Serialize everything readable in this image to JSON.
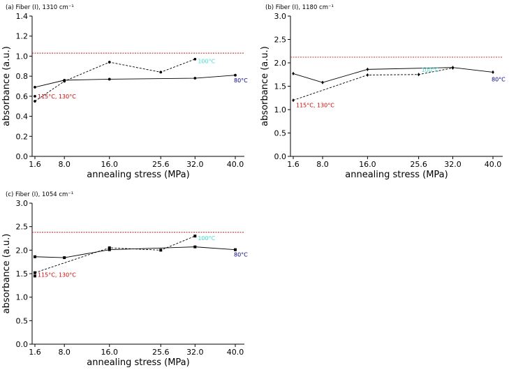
{
  "chart_data": [
    {
      "panel": "a",
      "title": "(a) Fiber (I), 1310 cm⁻¹",
      "type": "line",
      "xlabel": "annealing stress (MPa)",
      "ylabel": "absorbance (a.u.)",
      "categories": [
        "1.6",
        "8.0",
        "16.0",
        "25.6",
        "32.0",
        "40.0"
      ],
      "ylim": [
        0,
        1.4
      ],
      "yticks": [
        0.0,
        0.2,
        0.4,
        0.6,
        0.8,
        1.0,
        1.2,
        1.4
      ],
      "ytick_labels": [
        "0.0",
        "0.2",
        "0.4",
        "0.6",
        "0.8",
        "1.0",
        "1.2",
        "1.4"
      ],
      "reference_line": 1.03,
      "series": [
        {
          "name": "80°C",
          "style": "solid",
          "marker": "circle",
          "points": [
            [
              0,
              0.69
            ],
            [
              1,
              0.76
            ],
            [
              2,
              0.77
            ],
            [
              4,
              0.78
            ],
            [
              5,
              0.81
            ]
          ],
          "label": "80°C",
          "label_color": "#000080",
          "label_at": 5,
          "label_dy": -0.05
        },
        {
          "name": "100°C",
          "style": "dashed",
          "marker": "circle",
          "points": [
            [
              0,
              0.55
            ],
            [
              1,
              0.75
            ],
            [
              2,
              0.94
            ],
            [
              3,
              0.84
            ],
            [
              4,
              0.97
            ]
          ],
          "label": "100°C",
          "label_color": "#40e0d0",
          "label_at": 4,
          "label_dy": -0.02
        },
        {
          "name": "115°C, 130°C",
          "style": "none",
          "marker": "circle",
          "points": [
            [
              0,
              0.6
            ]
          ],
          "label": "115°C, 130°C",
          "label_color": "#cc0000",
          "label_at": 0,
          "label_dy": 0.0
        }
      ]
    },
    {
      "panel": "b",
      "title": "(b) Fiber (I), 1180 cm⁻¹",
      "type": "line",
      "xlabel": "annealing stress (MPa)",
      "ylabel": "absorbance (a.u.)",
      "categories": [
        "1.6",
        "8.0",
        "16.0",
        "25.6",
        "32.0",
        "40.0"
      ],
      "ylim": [
        0,
        3.0
      ],
      "yticks": [
        0.0,
        0.5,
        1.0,
        1.5,
        2.0,
        2.5,
        3.0
      ],
      "ytick_labels": [
        "0.0",
        "0.5",
        "1.0",
        "1.5",
        "2.0",
        "2.5",
        "3.0"
      ],
      "reference_line": 2.12,
      "series": [
        {
          "name": "80°C",
          "style": "solid",
          "marker": "diamond",
          "points": [
            [
              0,
              1.77
            ],
            [
              1,
              1.58
            ],
            [
              2,
              1.86
            ],
            [
              4,
              1.9
            ],
            [
              5,
              1.8
            ]
          ],
          "label": "80°C",
          "label_color": "#000080",
          "label_at": 5,
          "label_dy": -0.15
        },
        {
          "name": "100°C",
          "style": "dashed",
          "marker": "diamond",
          "points": [
            [
              0,
              1.2
            ],
            [
              2,
              1.74
            ],
            [
              3,
              1.75
            ],
            [
              4,
              1.89
            ]
          ],
          "label": "100°C",
          "label_color": "#40e0d0",
          "label_at": 3,
          "label_dy": 0.1
        },
        {
          "name": "115°C, 130°C",
          "style": "none",
          "marker": "diamond",
          "points": [],
          "label": "115°C, 130°C",
          "label_color": "#cc0000",
          "label_at": 0,
          "label_dy": 0.08
        }
      ]
    },
    {
      "panel": "c",
      "title": "(c) Fiber (I), 1054 cm⁻¹",
      "type": "line",
      "xlabel": "annealing stress (MPa)",
      "ylabel": "absorbance (a.u.)",
      "categories": [
        "1.6",
        "8.0",
        "16.0",
        "25.6",
        "32.0",
        "40.0"
      ],
      "ylim": [
        0,
        3.0
      ],
      "yticks": [
        0.0,
        0.5,
        1.0,
        1.5,
        2.0,
        2.5,
        3.0
      ],
      "ytick_labels": [
        "0.0",
        "0.5",
        "1.0",
        "1.5",
        "2.0",
        "2.5",
        "3.0"
      ],
      "reference_line": 2.38,
      "series": [
        {
          "name": "80°C",
          "style": "solid",
          "marker": "square",
          "points": [
            [
              0,
              1.86
            ],
            [
              1,
              1.84
            ],
            [
              2,
              2.01
            ],
            [
              4,
              2.07
            ],
            [
              5,
              2.01
            ]
          ],
          "label": "80°C",
          "label_color": "#000080",
          "label_at": 5,
          "label_dy": -0.1
        },
        {
          "name": "100°C",
          "style": "dashed",
          "marker": "square",
          "points": [
            [
              0,
              1.52
            ],
            [
              2,
              2.05
            ],
            [
              3,
              2.0
            ],
            [
              4,
              2.3
            ]
          ],
          "label": "100°C",
          "label_color": "#40e0d0",
          "label_at": 4,
          "label_dy": -0.04
        },
        {
          "name": "115°C, 130°C",
          "style": "none",
          "marker": "square",
          "points": [
            [
              0,
              1.45
            ]
          ],
          "label": "115°C, 130°C",
          "label_color": "#cc0000",
          "label_at": 0,
          "label_dy": 0.03
        }
      ]
    }
  ]
}
